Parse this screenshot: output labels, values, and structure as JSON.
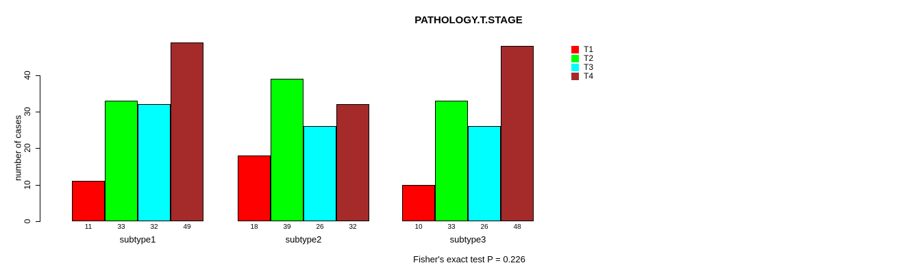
{
  "chart_data": {
    "type": "bar",
    "title": "PATHOLOGY.T.STAGE",
    "ylabel": "number of cases",
    "xlabel": "",
    "annotation": "Fisher's exact test P = 0.226",
    "categories": [
      "subtype1",
      "subtype2",
      "subtype3"
    ],
    "series": [
      {
        "name": "T1",
        "color": "#FF0000",
        "values": [
          11,
          18,
          10
        ]
      },
      {
        "name": "T2",
        "color": "#00FF00",
        "values": [
          33,
          39,
          33
        ]
      },
      {
        "name": "T3",
        "color": "#00FFFF",
        "values": [
          32,
          26,
          26
        ]
      },
      {
        "name": "T4",
        "color": "#A52A2A",
        "values": [
          49,
          32,
          48
        ]
      }
    ],
    "bar_value_labels": [
      [
        11,
        33,
        32,
        49
      ],
      [
        18,
        39,
        26,
        32
      ],
      [
        10,
        33,
        26,
        48
      ]
    ],
    "yticks": [
      0,
      10,
      20,
      30,
      40
    ],
    "ylim": [
      0,
      53
    ],
    "grid": false,
    "legend_position": "right",
    "legend_entries": [
      "T1",
      "T2",
      "T3",
      "T4"
    ],
    "bar_border_color": "#000000",
    "background_color": "#FFFFFF"
  }
}
